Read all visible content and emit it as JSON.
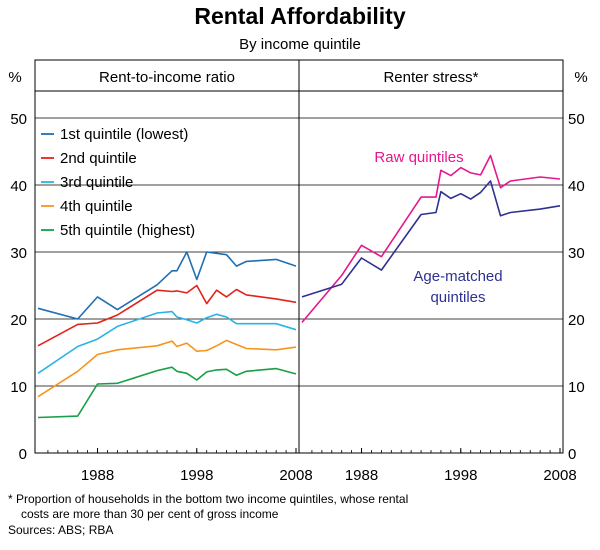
{
  "title": "Rental Affordability",
  "subtitle": "By income quintile",
  "footnote_line1": "*  Proportion of households in the bottom two income quintiles, whose rental",
  "footnote_line2": "costs are more than 30 per cent of gross income",
  "sources": "Sources: ABS; RBA",
  "chart_data": [
    {
      "type": "line",
      "panel_title": "Rent-to-income ratio",
      "y_unit_label": "%",
      "ylim": [
        0,
        50
      ],
      "yticks": [
        0,
        10,
        20,
        30,
        40,
        50
      ],
      "xlim": [
        1982,
        2008
      ],
      "xticks": [
        "1988",
        "1998",
        "2008"
      ],
      "grid": true,
      "legend_position": "top-left",
      "series": [
        {
          "name": "1st quintile (lowest)",
          "color": "#1f6fb4",
          "x": [
            1982,
            1986,
            1988,
            1990,
            1994,
            1995.5,
            1996,
            1997,
            1998,
            1999,
            2000,
            2001,
            2002,
            2003,
            2006,
            2008
          ],
          "y": [
            21.6,
            20.0,
            23.3,
            21.4,
            25.1,
            27.2,
            27.2,
            30.0,
            25.9,
            30.0,
            29.8,
            29.6,
            27.9,
            28.6,
            28.9,
            27.9
          ]
        },
        {
          "name": "2nd quintile",
          "color": "#e2231a",
          "x": [
            1982,
            1986,
            1988,
            1990,
            1994,
            1995.5,
            1996,
            1997,
            1998,
            1999,
            2000,
            2001,
            2002,
            2003,
            2006,
            2008
          ],
          "y": [
            16.0,
            19.2,
            19.4,
            20.6,
            24.3,
            24.1,
            24.2,
            23.9,
            25.0,
            22.3,
            24.3,
            23.3,
            24.4,
            23.6,
            23.0,
            22.5
          ]
        },
        {
          "name": "3rd quintile",
          "color": "#2ab4e6",
          "x": [
            1982,
            1986,
            1988,
            1990,
            1994,
            1995.5,
            1996,
            1997,
            1998,
            1999,
            2000,
            2001,
            2002,
            2003,
            2006,
            2008
          ],
          "y": [
            11.9,
            15.9,
            17.0,
            18.9,
            20.9,
            21.1,
            20.3,
            19.9,
            19.4,
            20.2,
            20.7,
            20.3,
            19.3,
            19.3,
            19.3,
            18.4
          ]
        },
        {
          "name": "4th quintile",
          "color": "#f7941d",
          "x": [
            1982,
            1986,
            1988,
            1990,
            1994,
            1995.5,
            1996,
            1997,
            1998,
            1999,
            2000,
            2001,
            2002,
            2003,
            2006,
            2008
          ],
          "y": [
            8.4,
            12.2,
            14.7,
            15.4,
            16.0,
            16.7,
            15.9,
            16.4,
            15.2,
            15.3,
            16.0,
            16.8,
            16.2,
            15.6,
            15.4,
            15.8
          ]
        },
        {
          "name": "5th quintile (highest)",
          "color": "#17a046",
          "x": [
            1982,
            1986,
            1988,
            1990,
            1994,
            1995.5,
            1996,
            1997,
            1998,
            1999,
            2000,
            2001,
            2002,
            2003,
            2006,
            2008
          ],
          "y": [
            5.3,
            5.5,
            10.3,
            10.4,
            12.3,
            12.8,
            12.2,
            11.9,
            10.9,
            12.1,
            12.4,
            12.5,
            11.6,
            12.2,
            12.6,
            11.8
          ]
        }
      ]
    },
    {
      "type": "line",
      "panel_title": "Renter stress*",
      "y_unit_label": "%",
      "ylim": [
        0,
        50
      ],
      "yticks": [
        0,
        10,
        20,
        30,
        40,
        50
      ],
      "xlim": [
        1982,
        2008
      ],
      "xticks": [
        "1988",
        "1998",
        "2008"
      ],
      "grid": true,
      "series": [
        {
          "name": "Raw quintiles",
          "color": "#e6178c",
          "x": [
            1982,
            1986,
            1988,
            1990,
            1994,
            1995.5,
            1996,
            1997,
            1998,
            1999,
            2000,
            2001,
            2002,
            2003,
            2006,
            2008
          ],
          "y": [
            19.5,
            26.5,
            31.0,
            29.3,
            38.2,
            38.2,
            42.2,
            41.4,
            42.6,
            41.8,
            41.5,
            44.4,
            39.6,
            40.6,
            41.2,
            40.9
          ]
        },
        {
          "name": "Age-matched quintiles",
          "color": "#2e3192",
          "x": [
            1982,
            1986,
            1988,
            1990,
            1994,
            1995.5,
            1996,
            1997,
            1998,
            1999,
            2000,
            2001,
            2002,
            2003,
            2006,
            2008
          ],
          "y": [
            23.3,
            25.2,
            29.1,
            27.3,
            35.6,
            35.9,
            39.0,
            38.0,
            38.7,
            37.9,
            38.9,
            40.6,
            35.4,
            35.9,
            36.4,
            36.9
          ]
        }
      ]
    }
  ]
}
